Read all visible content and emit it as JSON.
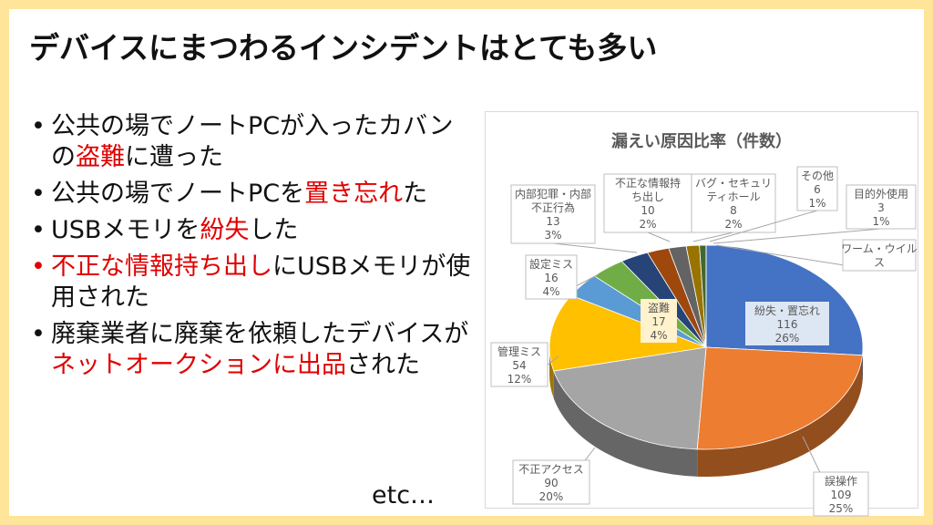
{
  "slide": {
    "title": "デバイスにまつわるインシデントはとても多い",
    "bullets": [
      {
        "segments": [
          {
            "text": "公共の場でノートPCが入ったカバンの",
            "highlight": false
          },
          {
            "text": "盗難",
            "highlight": true
          },
          {
            "text": "に遭った",
            "highlight": false
          }
        ]
      },
      {
        "segments": [
          {
            "text": "公共の場でノートPCを",
            "highlight": false
          },
          {
            "text": "置き忘れ",
            "highlight": true
          },
          {
            "text": "た",
            "highlight": false
          }
        ]
      },
      {
        "segments": [
          {
            "text": "USBメモリを",
            "highlight": false
          },
          {
            "text": "紛失",
            "highlight": true
          },
          {
            "text": "した",
            "highlight": false
          }
        ]
      },
      {
        "red_bullet": true,
        "segments": [
          {
            "text": "不正な情報持ち出し",
            "highlight": true
          },
          {
            "text": "にUSBメモリが使用された",
            "highlight": false
          }
        ]
      },
      {
        "segments": [
          {
            "text": "廃棄業者に廃棄を依頼したデバイスが",
            "highlight": false
          },
          {
            "text": "ネットオークションに出品",
            "highlight": true
          },
          {
            "text": "された",
            "highlight": false
          }
        ]
      }
    ],
    "bullet_char": "•",
    "footer_text": "etc…",
    "highlight_color": "#e00000"
  },
  "chart_data": {
    "type": "pie",
    "style": "3d",
    "title": "漏えい原因比率（件数）",
    "slices": [
      {
        "label": "紛失・置忘れ",
        "value": 116,
        "percent": "26%",
        "color": "#4472c4"
      },
      {
        "label": "誤操作",
        "value": 109,
        "percent": "25%",
        "color": "#ed7d31"
      },
      {
        "label": "不正アクセス",
        "value": 90,
        "percent": "20%",
        "color": "#a5a5a5"
      },
      {
        "label": "管理ミス",
        "value": 54,
        "percent": "12%",
        "color": "#ffc000"
      },
      {
        "label": "盗難",
        "value": 17,
        "percent": "4%",
        "color": "#5b9bd5"
      },
      {
        "label": "設定ミス",
        "value": 16,
        "percent": "4%",
        "color": "#70ad47"
      },
      {
        "label": "内部犯罪・内部不正行為",
        "value": 13,
        "percent": "3%",
        "color": "#264478"
      },
      {
        "label": "不正な情報持ち出し",
        "value": 10,
        "percent": "2%",
        "color": "#9e480e"
      },
      {
        "label": "バグ・セキュリティホール",
        "value": 8,
        "percent": "2%",
        "color": "#636363"
      },
      {
        "label": "その他",
        "value": 6,
        "percent": "1%",
        "color": "#997300"
      },
      {
        "label": "目的外使用",
        "value": 3,
        "percent": "1%",
        "color": "#43682b"
      },
      {
        "label": "ワーム・ウイルス",
        "value": 0,
        "percent": "",
        "color": "#698ed0"
      }
    ]
  }
}
